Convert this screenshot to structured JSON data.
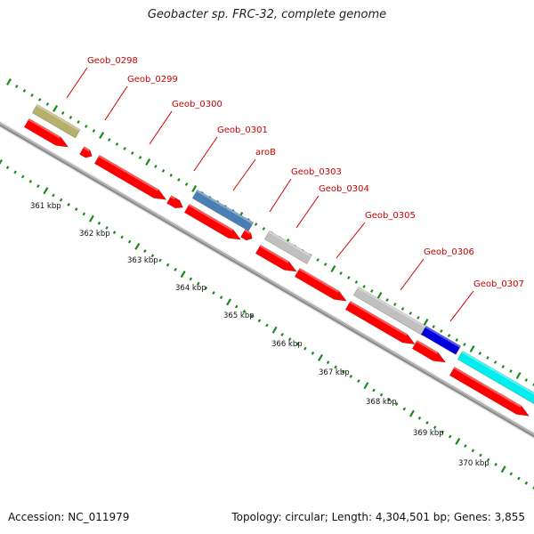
{
  "title": "Geobacter sp. FRC-32, complete genome",
  "footer": {
    "accession": "Accession: NC_011979",
    "summary": "Topology: circular; Length: 4,304,501 bp; Genes: 3,855"
  },
  "scale_labels": [
    "361 kbp",
    "362 kbp",
    "363 kbp",
    "364 kbp",
    "365 kbp",
    "366 kbp",
    "367 kbp",
    "368 kbp",
    "369 kbp",
    "370 kbp"
  ],
  "gene_labels": [
    "Geob_0298",
    "Geob_0299",
    "Geob_0300",
    "Geob_0301",
    "aroB",
    "Geob_0303",
    "Geob_0304",
    "Geob_0305",
    "Geob_0306",
    "Geob_0307"
  ],
  "colors": {
    "cds": "#ff0000",
    "tan": "#b5b06a",
    "steel_blue": "#4a7fb5",
    "grey": "#c0c0c0",
    "blue": "#0000dd",
    "cyan": "#00eeee",
    "tick": "#1a8a1a",
    "label": "#cc0000",
    "backbone": "#909090"
  }
}
